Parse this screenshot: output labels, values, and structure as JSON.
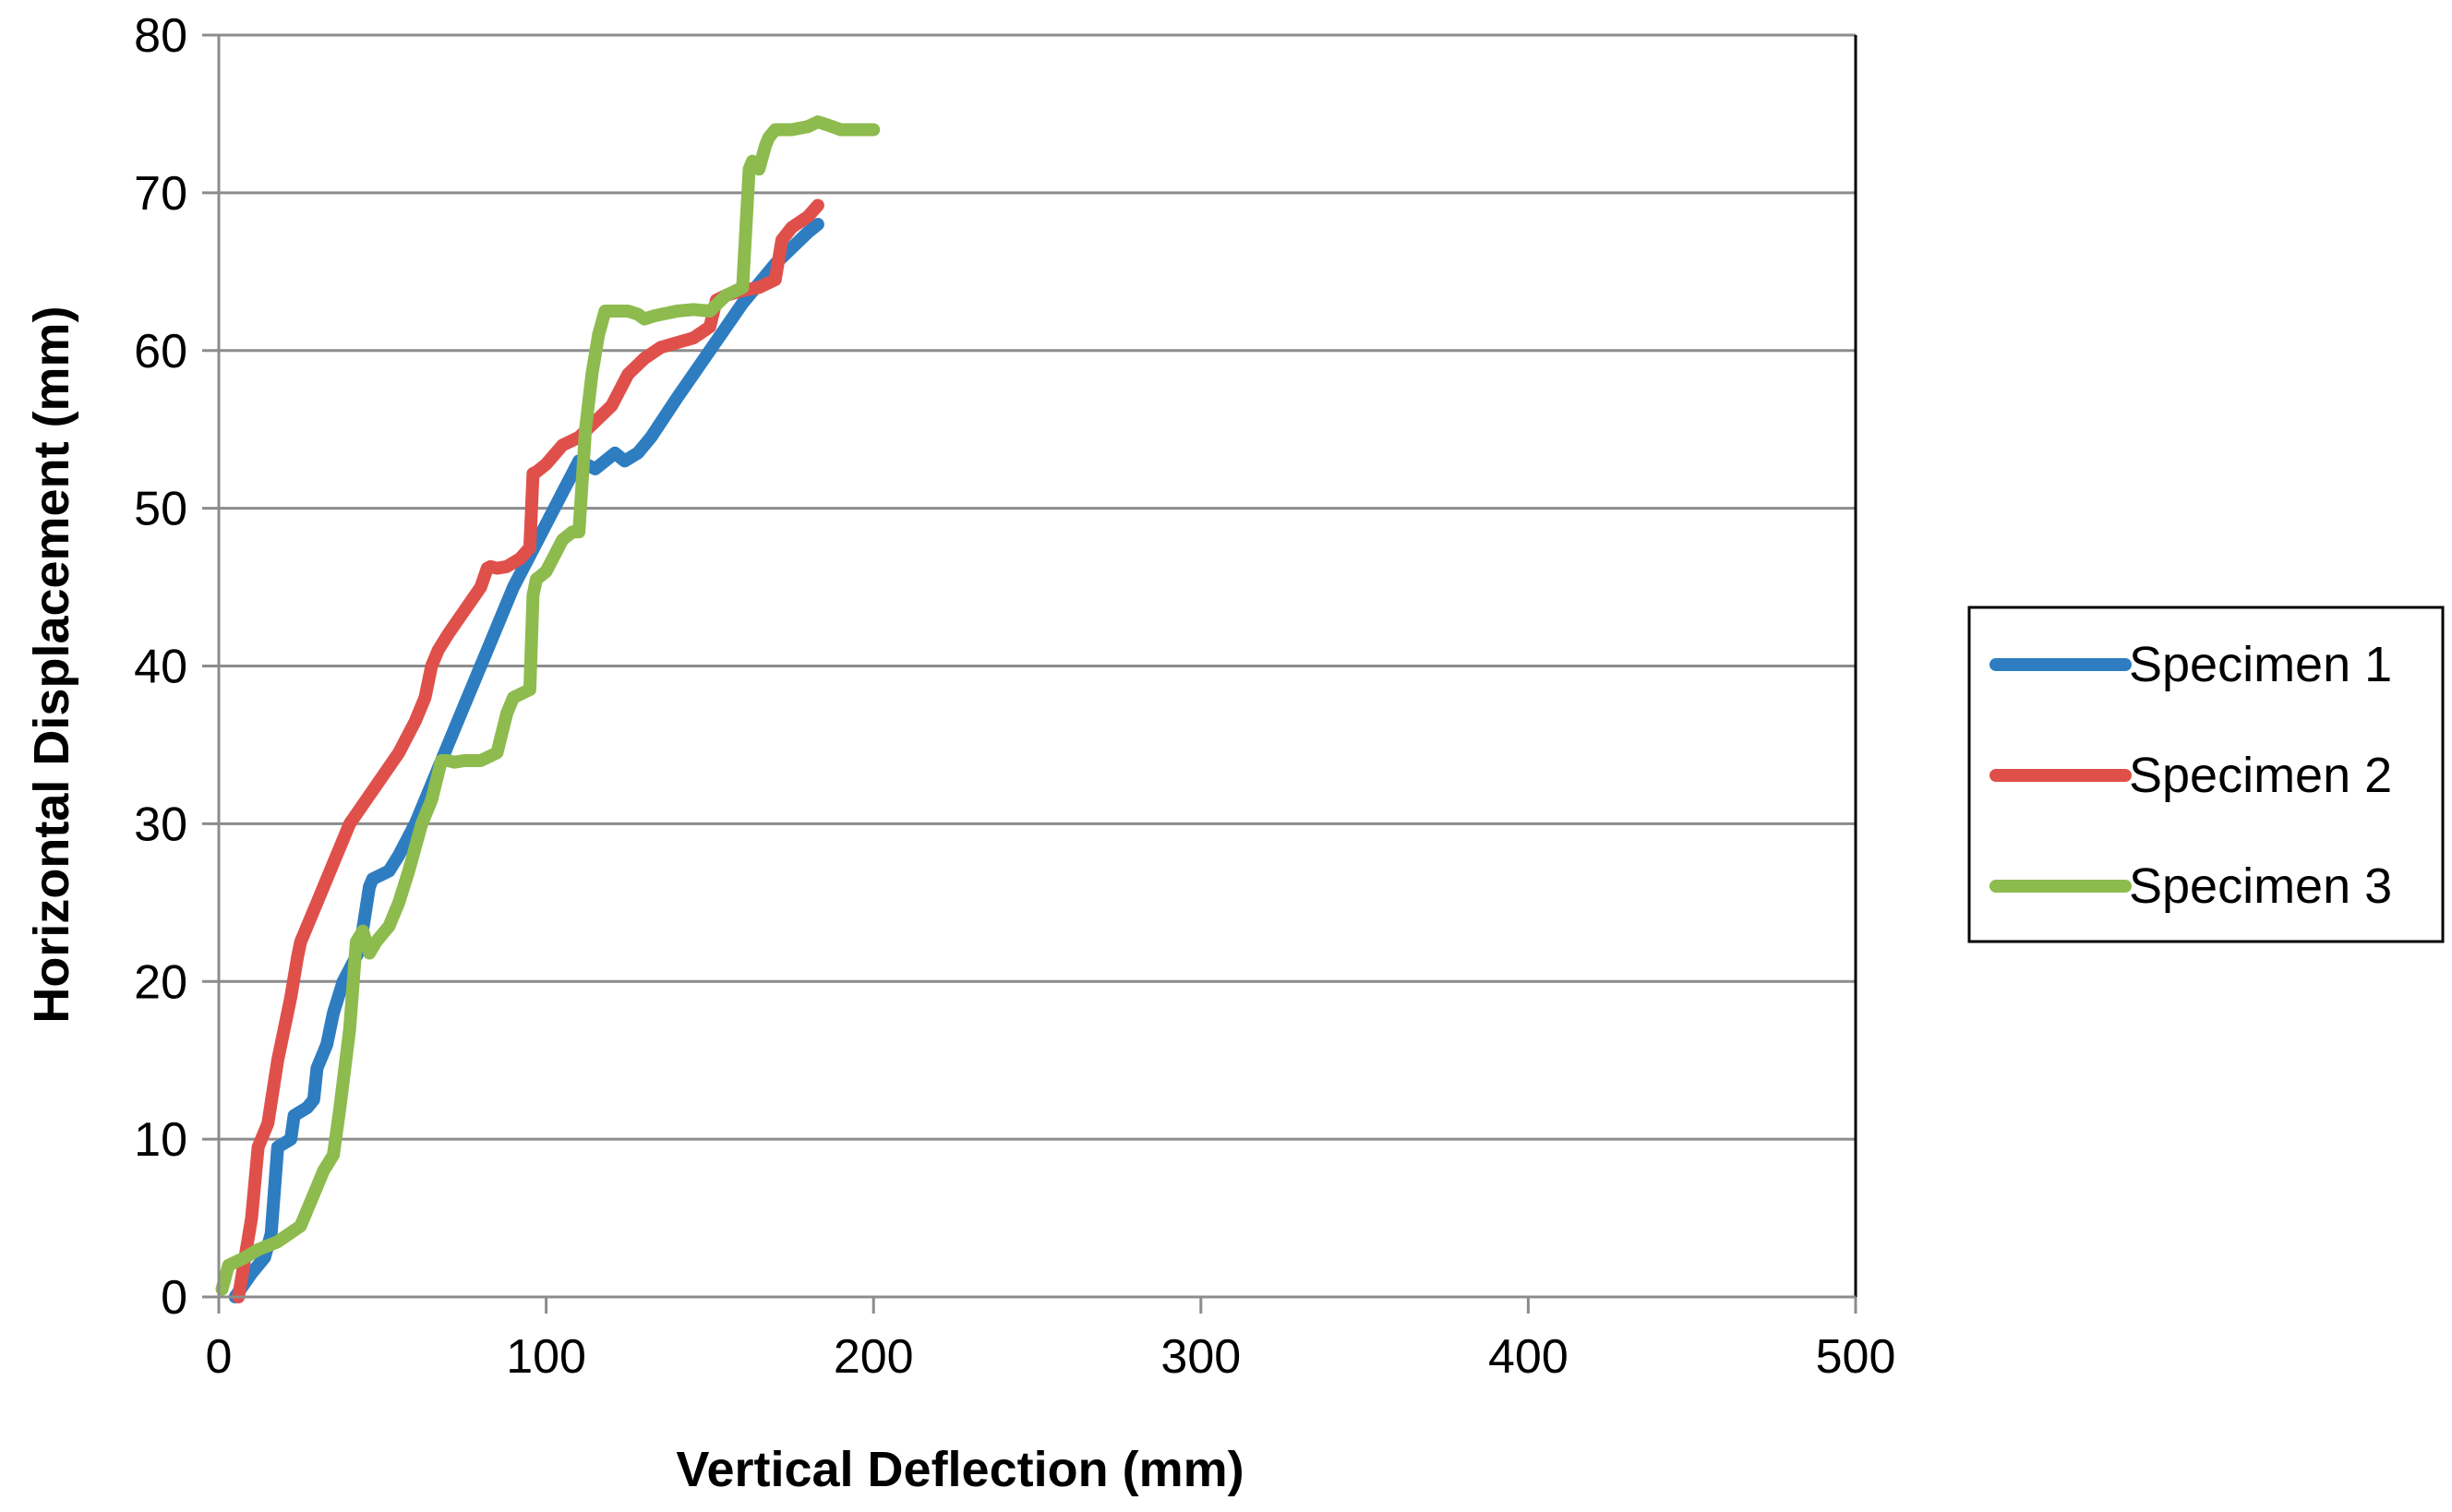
{
  "chart_data": {
    "type": "line",
    "title": "",
    "xlabel": "Vertical Deflection (mm)",
    "ylabel": "Horizontal Displacement (mm)",
    "xlim": [
      0,
      500
    ],
    "ylim": [
      0,
      80
    ],
    "xticks": [
      0,
      100,
      200,
      300,
      400,
      500
    ],
    "yticks": [
      0,
      10,
      20,
      30,
      40,
      50,
      60,
      70,
      80
    ],
    "x_tick_labels": [
      "0",
      "100",
      "200",
      "300",
      "400",
      "500"
    ],
    "y_tick_labels": [
      "0",
      "10",
      "20",
      "30",
      "40",
      "50",
      "60",
      "70",
      "80"
    ],
    "grid": "horizontal",
    "legend_position": "right",
    "series": [
      {
        "name": "Specimen 1",
        "color": "#2E7DC1",
        "x": [
          5,
          10,
          14,
          16,
          18,
          22,
          23,
          27,
          29,
          30,
          33,
          35,
          38,
          43,
          46,
          47,
          52,
          55,
          60,
          65,
          70,
          75,
          80,
          85,
          90,
          95,
          100,
          105,
          110,
          115,
          118,
          121,
          124,
          128,
          132,
          140,
          150,
          160,
          170,
          175,
          180,
          183
        ],
        "y": [
          0,
          1.5,
          2.5,
          4,
          9.5,
          10,
          11.5,
          12,
          12.5,
          14.5,
          16,
          18,
          20,
          22,
          26,
          26.5,
          27,
          28,
          30,
          32.5,
          35,
          37.5,
          40,
          42.5,
          45,
          47,
          49,
          51,
          53,
          52.5,
          53,
          53.5,
          53,
          53.5,
          54.5,
          57,
          60,
          63,
          65.5,
          66.5,
          67.5,
          68
        ]
      },
      {
        "name": "Specimen 2",
        "color": "#E0504B",
        "x": [
          6,
          8,
          10,
          12,
          15,
          18,
          22,
          24,
          25,
          30,
          35,
          40,
          45,
          50,
          55,
          60,
          63,
          65,
          67,
          70,
          75,
          80,
          82,
          83,
          85,
          88,
          92,
          95,
          96,
          97,
          100,
          105,
          110,
          115,
          120,
          125,
          130,
          135,
          140,
          145,
          150,
          152,
          155,
          160,
          165,
          170,
          172,
          175,
          180,
          183
        ],
        "y": [
          0,
          2.5,
          5,
          9.5,
          11,
          15,
          19,
          21.5,
          22.5,
          25,
          27.5,
          30,
          31.5,
          33,
          34.5,
          36.5,
          38,
          40,
          41,
          42,
          43.5,
          45,
          46.2,
          46.3,
          46.2,
          46.3,
          46.8,
          47.5,
          52.2,
          52.3,
          52.8,
          54,
          54.5,
          55.5,
          56.5,
          58.5,
          59.5,
          60.2,
          60.5,
          60.8,
          61.5,
          63.2,
          63.5,
          63.8,
          64,
          64.5,
          67,
          67.8,
          68.5,
          69.2
        ]
      },
      {
        "name": "Specimen 3",
        "color": "#8DBB4E",
        "x": [
          1,
          3,
          8,
          12,
          18,
          25,
          27,
          30,
          32,
          35,
          37,
          40,
          42,
          44,
          46,
          48,
          52,
          55,
          58,
          62,
          65,
          68,
          70,
          72,
          75,
          80,
          85,
          88,
          90,
          95,
          96,
          97,
          100,
          105,
          108,
          110,
          112,
          114,
          116,
          118,
          120,
          125,
          128,
          130,
          133,
          140,
          145,
          150,
          155,
          160,
          162,
          163,
          165,
          167,
          168,
          170,
          175,
          180,
          183,
          186,
          190,
          200
        ],
        "y": [
          0.5,
          2,
          2.5,
          3,
          3.5,
          4.5,
          5.5,
          7,
          8,
          9,
          12,
          17,
          22.5,
          23.2,
          21.8,
          22.5,
          23.5,
          25,
          27,
          30,
          31.5,
          34,
          34,
          33.9,
          34,
          34,
          34.5,
          37,
          38,
          38.5,
          44.5,
          45.5,
          46,
          48,
          48.5,
          48.5,
          55,
          58.5,
          61,
          62.5,
          62.5,
          62.5,
          62.3,
          62,
          62.2,
          62.5,
          62.6,
          62.5,
          63.5,
          64,
          71.5,
          72,
          71.5,
          73,
          73.5,
          74,
          74,
          74.2,
          74.5,
          74.3,
          74,
          74
        ]
      }
    ]
  }
}
